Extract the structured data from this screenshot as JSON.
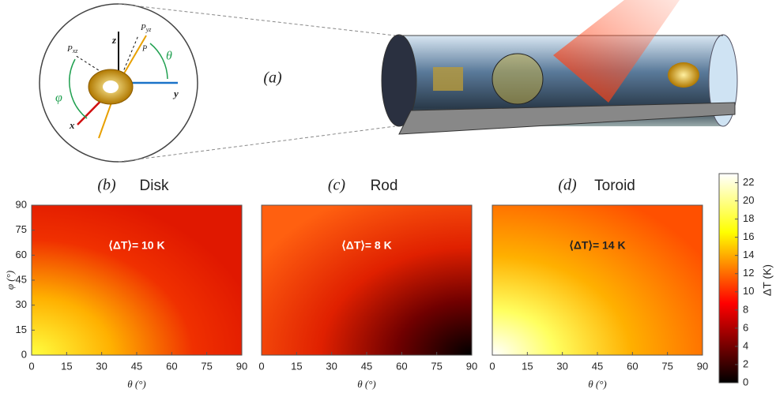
{
  "diagram": {
    "panel_label": "(a)",
    "axis_z": "z",
    "axis_y": "y",
    "axis_x": "x",
    "theta": "θ",
    "phi": "φ",
    "p": "P",
    "pxz": {
      "main": "P",
      "sub": "xz"
    },
    "pyz": {
      "main": "P",
      "sub": "yz"
    }
  },
  "chart_data": [
    {
      "type": "heatmap",
      "panel_label": "(b)",
      "title": "Disk",
      "annotation": "⟨ΔT⟩= 10 K",
      "xlabel": "θ (°)",
      "ylabel": "φ (°)",
      "xlim": [
        0,
        90
      ],
      "ylim": [
        0,
        90
      ],
      "xticks": [
        0,
        15,
        30,
        45,
        60,
        75,
        90
      ],
      "yticks": [
        0,
        15,
        30,
        45,
        60,
        75,
        90
      ]
    },
    {
      "type": "heatmap",
      "panel_label": "(c)",
      "title": "Rod",
      "annotation": "⟨ΔT⟩= 8 K",
      "xlabel": "θ (°)",
      "xlim": [
        0,
        90
      ],
      "ylim": [
        0,
        90
      ],
      "xticks": [
        0,
        15,
        30,
        45,
        60,
        75,
        90
      ]
    },
    {
      "type": "heatmap",
      "panel_label": "(d)",
      "title": "Toroid",
      "annotation": "⟨ΔT⟩= 14 K",
      "xlabel": "θ (°)",
      "xlim": [
        0,
        90
      ],
      "ylim": [
        0,
        90
      ],
      "xticks": [
        0,
        15,
        30,
        45,
        60,
        75,
        90
      ],
      "colorbar_label": "ΔT (K)",
      "clim": [
        0,
        23
      ],
      "cticks": [
        0,
        2,
        4,
        6,
        8,
        10,
        12,
        14,
        16,
        18,
        20,
        22
      ]
    }
  ]
}
